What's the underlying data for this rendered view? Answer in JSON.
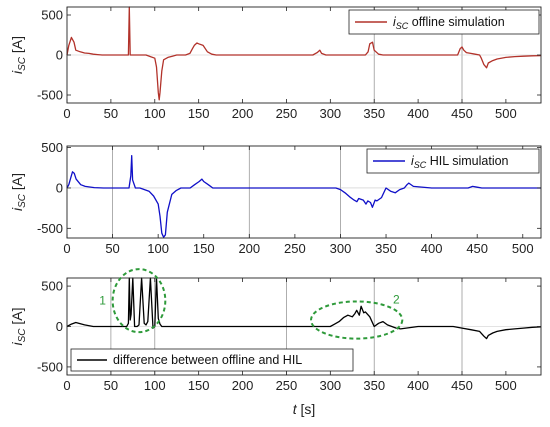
{
  "chart_data": [
    {
      "type": "line",
      "ylabel_main": "i",
      "ylabel_sub": "SC",
      "ylabel_unit": " [A]",
      "legend": {
        "text_main": "i",
        "text_sub": "SC",
        "text_rest": " offline simulation",
        "placement": "top-right"
      },
      "xlim": [
        0,
        540
      ],
      "ylim": [
        -600,
        600
      ],
      "xticks": [
        0,
        50,
        100,
        150,
        200,
        250,
        300,
        350,
        400,
        450,
        500
      ],
      "yticks": [
        -500,
        0,
        500
      ],
      "grid": "vertical lines at 350 and 450",
      "color": "#b2322a",
      "series": [
        {
          "x": [
            0,
            2,
            5,
            8,
            10,
            15,
            20,
            25,
            30,
            35,
            40,
            45,
            50,
            55,
            60,
            65,
            68,
            70,
            71,
            72,
            75,
            80,
            85,
            90,
            95,
            100,
            102,
            104,
            105,
            106,
            108,
            110,
            115,
            120,
            125,
            130,
            135,
            140,
            143,
            145,
            148,
            150,
            155,
            160,
            165,
            170,
            180,
            200,
            250,
            280,
            285,
            288,
            290,
            295,
            300,
            310,
            320,
            330,
            340,
            343,
            345,
            348,
            350,
            355,
            360,
            380,
            400,
            430,
            445,
            448,
            450,
            452,
            455,
            460,
            465,
            470,
            472,
            475,
            478,
            480,
            485,
            490,
            500,
            510,
            520,
            530,
            540
          ],
          "y": [
            0,
            120,
            220,
            160,
            60,
            40,
            25,
            20,
            10,
            5,
            0,
            0,
            0,
            0,
            0,
            0,
            0,
            0,
            620,
            0,
            0,
            0,
            0,
            0,
            -20,
            -40,
            -150,
            -470,
            -560,
            -470,
            -200,
            -60,
            -30,
            -15,
            0,
            0,
            0,
            20,
            80,
            120,
            150,
            140,
            120,
            40,
            10,
            0,
            0,
            0,
            0,
            0,
            30,
            60,
            20,
            0,
            0,
            0,
            0,
            0,
            0,
            40,
            140,
            160,
            60,
            10,
            0,
            0,
            0,
            0,
            0,
            80,
            100,
            60,
            30,
            20,
            10,
            0,
            -40,
            -120,
            -160,
            -100,
            -70,
            -50,
            -30,
            -20,
            -15,
            -10,
            -8
          ]
        }
      ]
    },
    {
      "type": "line",
      "ylabel_main": "i",
      "ylabel_sub": "SC",
      "ylabel_unit": " [A]",
      "legend": {
        "text_main": "i",
        "text_sub": "SC",
        "text_rest": " HIL simulation",
        "placement": "top-right"
      },
      "xlim": [
        0,
        520
      ],
      "ylim": [
        -620,
        520
      ],
      "xticks": [
        0,
        50,
        100,
        150,
        200,
        250,
        300,
        350,
        400,
        450,
        500
      ],
      "yticks": [
        -500,
        0,
        500
      ],
      "grid": "vertical lines at 50, 200 and 300",
      "color": "#1010c8",
      "series": [
        {
          "x": [
            0,
            2,
            4,
            6,
            8,
            10,
            15,
            20,
            30,
            40,
            50,
            60,
            65,
            68,
            70,
            71,
            72,
            75,
            80,
            90,
            95,
            100,
            102,
            104,
            106,
            108,
            110,
            115,
            120,
            125,
            130,
            135,
            140,
            145,
            148,
            150,
            155,
            160,
            165,
            170,
            200,
            250,
            280,
            290,
            295,
            300,
            305,
            310,
            315,
            318,
            320,
            325,
            328,
            330,
            333,
            335,
            338,
            340,
            345,
            350,
            355,
            360,
            365,
            370,
            373,
            375,
            380,
            400,
            440,
            445,
            450,
            455,
            460,
            470,
            480,
            490,
            500,
            510,
            520
          ],
          "y": [
            0,
            40,
            120,
            200,
            180,
            110,
            40,
            20,
            5,
            0,
            0,
            0,
            0,
            0,
            150,
            400,
            100,
            0,
            0,
            -40,
            -100,
            -200,
            -350,
            -560,
            -610,
            -580,
            -300,
            -80,
            -30,
            0,
            0,
            0,
            40,
            80,
            110,
            80,
            40,
            0,
            0,
            0,
            0,
            0,
            0,
            0,
            0,
            -20,
            -60,
            -110,
            -150,
            -170,
            -130,
            -150,
            -200,
            -160,
            -180,
            -240,
            -150,
            -160,
            -120,
            0,
            -40,
            -60,
            -20,
            0,
            40,
            60,
            20,
            0,
            0,
            20,
            10,
            0,
            0,
            0,
            0,
            0,
            0,
            0,
            0
          ]
        }
      ]
    },
    {
      "type": "line",
      "ylabel_main": "i",
      "ylabel_sub": "SC",
      "ylabel_unit": " [A]",
      "xlabel_main": "t",
      "xlabel_unit": " [s]",
      "legend": {
        "text": "difference between offline and HIL",
        "placement": "bottom-left"
      },
      "xlim": [
        0,
        540
      ],
      "ylim": [
        -600,
        600
      ],
      "xticks": [
        0,
        50,
        100,
        150,
        200,
        250,
        300,
        350,
        400,
        450,
        500
      ],
      "yticks": [
        -500,
        0,
        500
      ],
      "grid": "vertical lines at 50, 100, 250, 350 and 450",
      "color": "#000000",
      "annotations": [
        {
          "label": "1",
          "center": [
            82,
            320
          ],
          "radius": [
            30,
            390
          ]
        },
        {
          "label": "2",
          "center": [
            330,
            80
          ],
          "radius": [
            52,
            230
          ]
        }
      ],
      "series": [
        {
          "x": [
            0,
            5,
            10,
            20,
            30,
            40,
            50,
            60,
            68,
            70,
            71,
            72,
            73,
            75,
            77,
            80,
            82,
            85,
            88,
            90,
            92,
            95,
            98,
            100,
            102,
            104,
            106,
            108,
            110,
            115,
            120,
            130,
            140,
            150,
            160,
            170,
            200,
            250,
            280,
            290,
            300,
            305,
            310,
            315,
            320,
            325,
            328,
            330,
            333,
            335,
            338,
            340,
            345,
            350,
            355,
            360,
            365,
            370,
            375,
            380,
            400,
            440,
            450,
            460,
            470,
            475,
            478,
            480,
            485,
            490,
            500,
            510,
            520,
            530,
            540
          ],
          "y": [
            0,
            30,
            50,
            20,
            0,
            0,
            0,
            0,
            0,
            40,
            600,
            80,
            150,
            600,
            0,
            0,
            20,
            600,
            40,
            20,
            60,
            600,
            -20,
            0,
            600,
            100,
            30,
            0,
            0,
            0,
            0,
            0,
            0,
            0,
            0,
            0,
            0,
            0,
            0,
            0,
            0,
            30,
            60,
            110,
            140,
            120,
            160,
            200,
            140,
            250,
            170,
            180,
            120,
            0,
            40,
            60,
            20,
            0,
            -20,
            -30,
            0,
            0,
            -20,
            -40,
            -60,
            -120,
            -150,
            -110,
            -80,
            -60,
            -40,
            -30,
            -20,
            -10,
            -5
          ]
        }
      ]
    }
  ]
}
